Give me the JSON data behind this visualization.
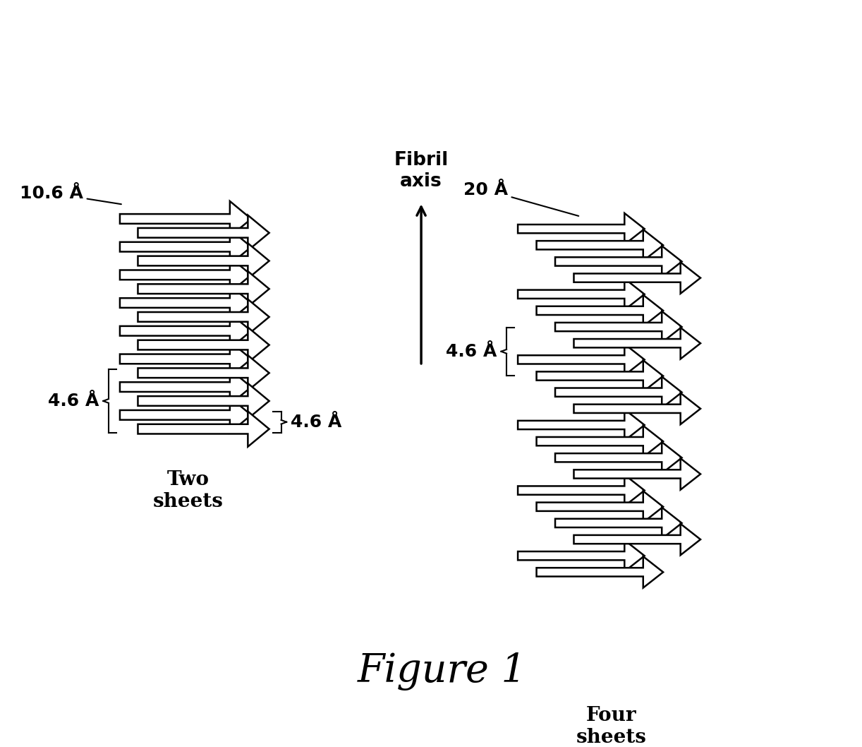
{
  "background_color": "#ffffff",
  "figure_title": "Figure 1",
  "figure_title_fontsize": 40,
  "fibril_axis_label": "Fibril\naxis",
  "left_label": "Two\nsheets",
  "right_label": "Four\nsheets",
  "left_dim_top": "10.6 Å",
  "left_dim_bottom": "4.6 Å",
  "left_dim_right": "4.6 Å",
  "right_dim_top": "20 Å",
  "right_dim_bottom": "4.6 Å",
  "label_fontsize": 20,
  "dim_fontsize": 18,
  "axis_label_fontsize": 19,
  "lw": 1.8
}
